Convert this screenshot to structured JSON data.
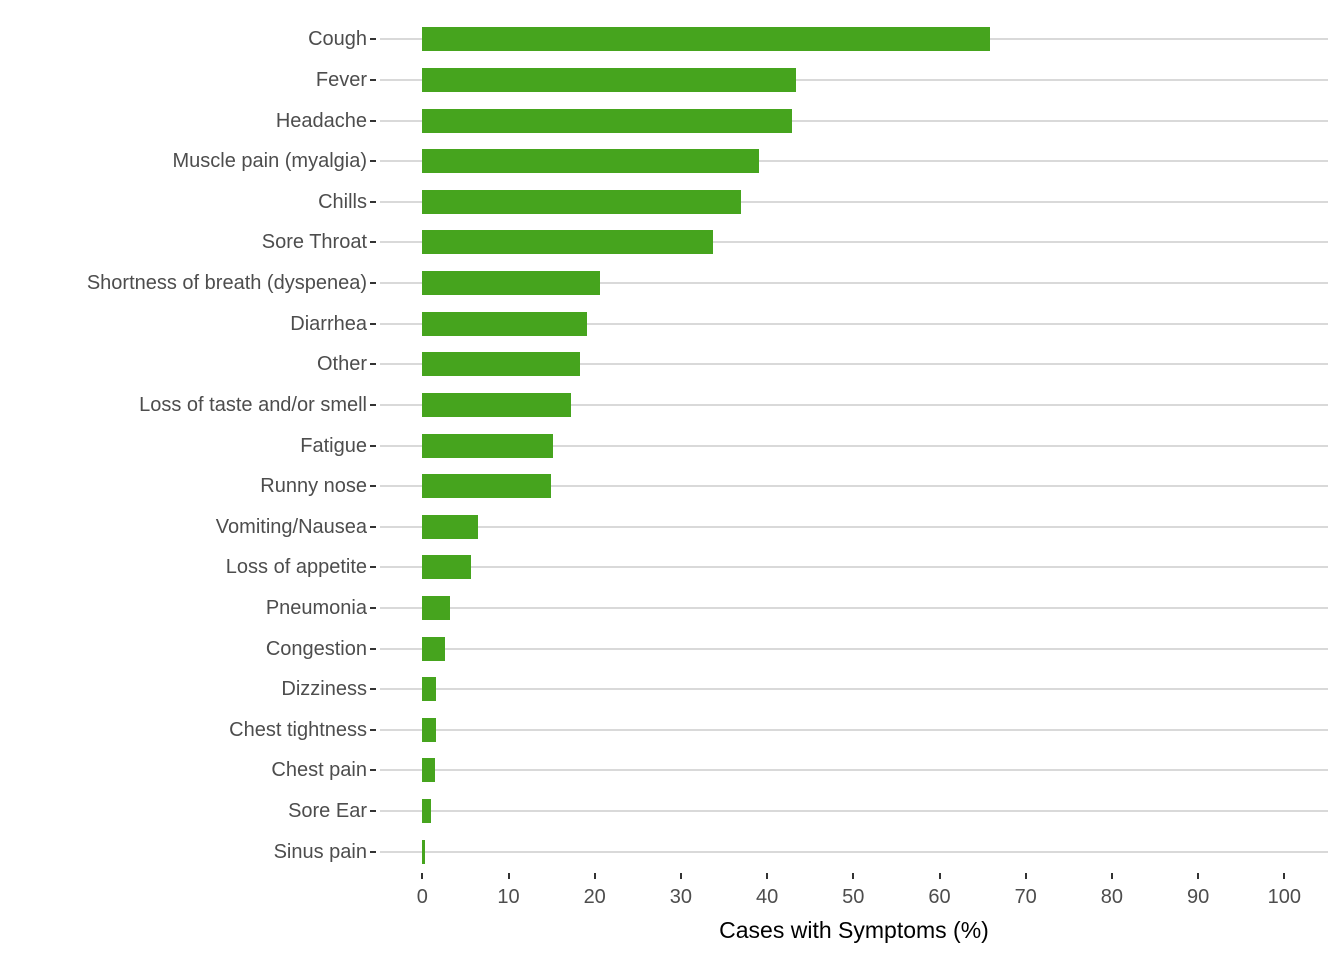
{
  "chart_data": {
    "type": "bar",
    "orientation": "horizontal",
    "categories": [
      "Cough",
      "Fever",
      "Headache",
      "Muscle pain (myalgia)",
      "Chills",
      "Sore Throat",
      "Shortness of breath (dyspenea)",
      "Diarrhea",
      "Other",
      "Loss of taste and/or smell",
      "Fatigue",
      "Runny nose",
      "Vomiting/Nausea",
      "Loss of appetite",
      "Pneumonia",
      "Congestion",
      "Dizziness",
      "Chest tightness",
      "Chest pain",
      "Sore Ear",
      "Sinus pain"
    ],
    "values": [
      65.9,
      43.3,
      42.9,
      39.1,
      37.0,
      33.7,
      20.6,
      19.1,
      18.3,
      17.3,
      15.2,
      14.9,
      6.5,
      5.7,
      3.2,
      2.6,
      1.6,
      1.6,
      1.5,
      1.0,
      0.3
    ],
    "title": "",
    "xlabel": "Cases with Symptoms (%)",
    "ylabel": "",
    "x_ticks": [
      0,
      10,
      20,
      30,
      40,
      50,
      60,
      70,
      80,
      90,
      100
    ],
    "xlim": [
      0,
      100
    ],
    "grid": "horizontal-major-only",
    "legend": "none",
    "bar_color": "#46a41e",
    "gridline_color": "#d9d9d9",
    "tick_mark_color": "#333333",
    "axis_text_color": "#4d4d4d",
    "axis_title_color": "#000000",
    "background_color": "#ffffff"
  }
}
